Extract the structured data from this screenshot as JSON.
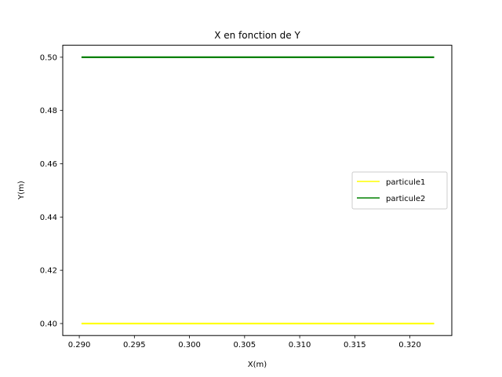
{
  "chart_data": {
    "type": "line",
    "title": "X en fonction de Y",
    "xlabel": "X(m)",
    "ylabel": "Y(m)",
    "xlim": [
      0.2885,
      0.3238
    ],
    "ylim": [
      0.3955,
      0.5045
    ],
    "xticks": [
      0.29,
      0.295,
      0.3,
      0.305,
      0.31,
      0.315,
      0.32
    ],
    "xtick_labels": [
      "0.290",
      "0.295",
      "0.300",
      "0.305",
      "0.310",
      "0.315",
      "0.320"
    ],
    "yticks": [
      0.4,
      0.42,
      0.44,
      0.46,
      0.48,
      0.5
    ],
    "ytick_labels": [
      "0.40",
      "0.42",
      "0.44",
      "0.46",
      "0.48",
      "0.50"
    ],
    "grid": false,
    "legend_position": "center-right",
    "series": [
      {
        "name": "particule1",
        "color": "#ffff00",
        "x": [
          0.2902,
          0.3222
        ],
        "y": [
          0.4,
          0.4
        ]
      },
      {
        "name": "particule2",
        "color": "#008000",
        "x": [
          0.2902,
          0.3222
        ],
        "y": [
          0.5,
          0.5
        ]
      }
    ]
  }
}
